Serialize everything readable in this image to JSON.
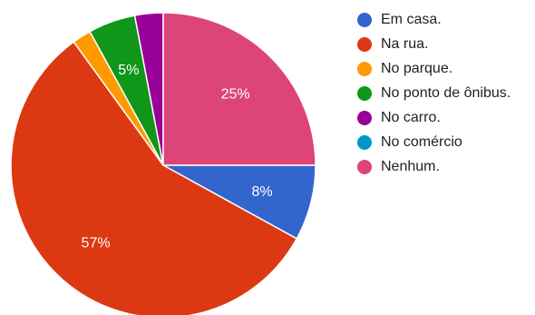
{
  "chart_data": {
    "type": "pie",
    "categories": [
      "Em casa.",
      "Na rua.",
      "No parque.",
      "No ponto de ônibus.",
      "No carro.",
      "No comércio",
      "Nenhum."
    ],
    "values": [
      8,
      57,
      2,
      5,
      3,
      0,
      25
    ],
    "data_labels": [
      "8%",
      "57%",
      "",
      "5%",
      "",
      "",
      "25%"
    ],
    "colors": [
      "#3366cc",
      "#dc3912",
      "#ff9900",
      "#109618",
      "#990099",
      "#0099c6",
      "#dd4477"
    ],
    "legend_position": "right"
  }
}
